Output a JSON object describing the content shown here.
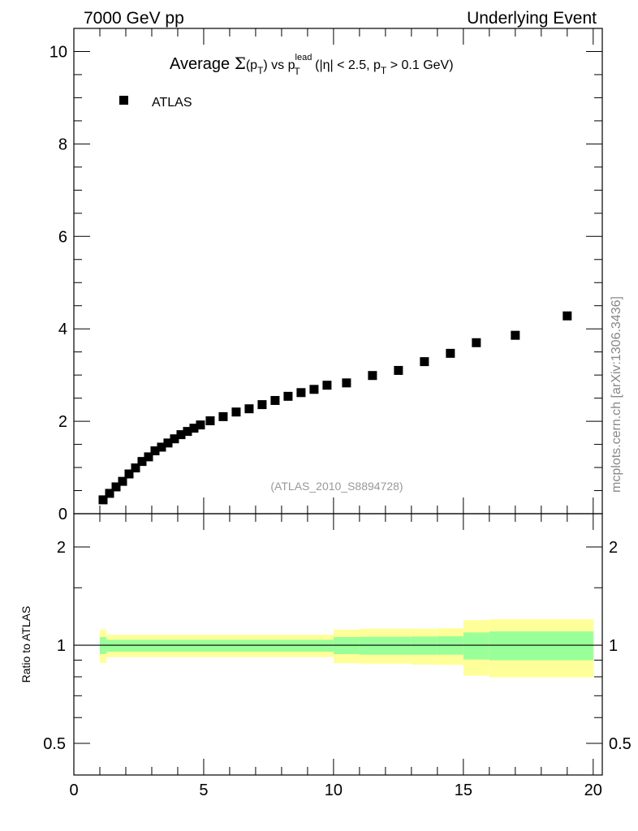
{
  "header": {
    "left": "7000 GeV pp",
    "right": "Underlying Event"
  },
  "side_label": "mcplots.cern.ch [arXiv:1306.3436]",
  "analysis_label": "(ATLAS_2010_S8894728)",
  "colors": {
    "yellow": "#ffff99",
    "green": "#99ff99",
    "marker": "#000000",
    "gray": "#999999"
  },
  "title_parts": {
    "a": "Average ",
    "sigma": "Σ",
    "b": "(p",
    "sub1": "T",
    "c": ") vs p",
    "sup": "lead",
    "sub2": "T",
    "d": " (|η| < 2.5, p",
    "sub3": "T",
    "e": " > 0.1 GeV)"
  },
  "chart_data": [
    {
      "type": "scatter",
      "title": "Average Σ(pT) vs pT lead (|η| < 2.5, pT > 0.1 GeV)",
      "legend": [
        {
          "name": "ATLAS",
          "marker": "square"
        }
      ],
      "legend_placement": "top-left",
      "xlim": [
        0,
        20.35
      ],
      "ylim": [
        0,
        10.5
      ],
      "yticks": [
        0,
        2,
        4,
        6,
        8,
        10
      ],
      "x": [
        1.125,
        1.375,
        1.625,
        1.875,
        2.125,
        2.375,
        2.625,
        2.875,
        3.125,
        3.375,
        3.625,
        3.875,
        4.125,
        4.375,
        4.625,
        4.875,
        5.25,
        5.75,
        6.25,
        6.75,
        7.25,
        7.75,
        8.25,
        8.75,
        9.25,
        9.75,
        10.5,
        11.5,
        12.5,
        13.5,
        14.5,
        15.5,
        17,
        19
      ],
      "y": [
        0.3,
        0.44,
        0.58,
        0.7,
        0.86,
        0.99,
        1.13,
        1.23,
        1.36,
        1.44,
        1.53,
        1.62,
        1.71,
        1.78,
        1.85,
        1.92,
        2.01,
        2.1,
        2.2,
        2.27,
        2.36,
        2.45,
        2.54,
        2.62,
        2.69,
        2.78,
        2.83,
        2.99,
        3.1,
        3.29,
        3.47,
        3.7,
        3.86,
        4.28
      ]
    },
    {
      "type": "area",
      "ylabel": "Ratio to ATLAS",
      "yscale": "log",
      "ylim": [
        0.4,
        2.53
      ],
      "yticks": [
        0.5,
        1,
        2
      ],
      "xlim": [
        0,
        20.35
      ],
      "xticks": [
        0,
        5,
        10,
        15,
        20
      ],
      "reference": 1,
      "bins": [
        {
          "x": [
            1,
            1.25
          ],
          "yellow": [
            0.883,
            1.117
          ],
          "green": [
            0.94,
            1.059
          ]
        },
        {
          "x": [
            1.25,
            10
          ],
          "yellow": [
            0.919,
            1.077
          ],
          "green": [
            0.955,
            1.039
          ]
        },
        {
          "x": [
            10,
            11
          ],
          "yellow": [
            0.881,
            1.117
          ],
          "green": [
            0.939,
            1.059
          ]
        },
        {
          "x": [
            11,
            13
          ],
          "yellow": [
            0.878,
            1.123
          ],
          "green": [
            0.935,
            1.061
          ]
        },
        {
          "x": [
            13,
            14
          ],
          "yellow": [
            0.872,
            1.123
          ],
          "green": [
            0.935,
            1.063
          ]
        },
        {
          "x": [
            14,
            15
          ],
          "yellow": [
            0.87,
            1.127
          ],
          "green": [
            0.935,
            1.065
          ]
        },
        {
          "x": [
            15,
            16
          ],
          "yellow": [
            0.806,
            1.194
          ],
          "green": [
            0.904,
            1.094
          ]
        },
        {
          "x": [
            16,
            20
          ],
          "yellow": [
            0.797,
            1.201
          ],
          "green": [
            0.899,
            1.102
          ]
        }
      ]
    }
  ]
}
